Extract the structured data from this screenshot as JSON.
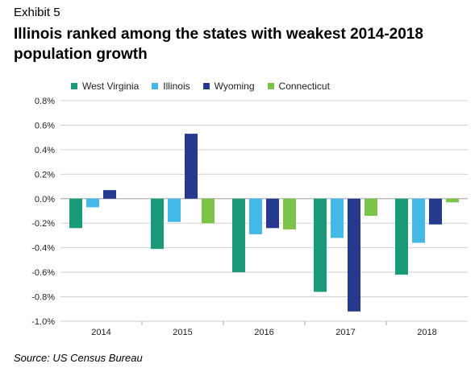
{
  "header": {
    "exhibit": "Exhibit 5",
    "title": "Illinois ranked among the states with weakest 2014-2018 population growth"
  },
  "footer": {
    "source": "Source: US Census Bureau"
  },
  "chart_data": {
    "type": "bar",
    "title": "Illinois ranked among the states with weakest 2014-2018 population growth",
    "categories": [
      "2014",
      "2015",
      "2016",
      "2017",
      "2018"
    ],
    "series": [
      {
        "name": "West Virginia",
        "color": "#1a9a78",
        "values": [
          -0.24,
          -0.41,
          -0.6,
          -0.76,
          -0.62
        ]
      },
      {
        "name": "Illinois",
        "color": "#44b8e6",
        "values": [
          -0.07,
          -0.19,
          -0.29,
          -0.32,
          -0.36
        ]
      },
      {
        "name": "Wyoming",
        "color": "#25398e",
        "values": [
          0.07,
          0.53,
          -0.24,
          -0.92,
          -0.21
        ]
      },
      {
        "name": "Connecticut",
        "color": "#7cc349",
        "values": [
          0.0,
          -0.2,
          -0.25,
          -0.14,
          -0.03
        ]
      }
    ],
    "yticks": [
      "0.8%",
      "0.6%",
      "0.4%",
      "0.2%",
      "0.0%",
      "-0.2%",
      "-0.4%",
      "-0.6%",
      "-0.8%",
      "-1.0%"
    ],
    "ylim": [
      -1.0,
      0.8
    ],
    "grid": true,
    "legend": "top-left"
  }
}
